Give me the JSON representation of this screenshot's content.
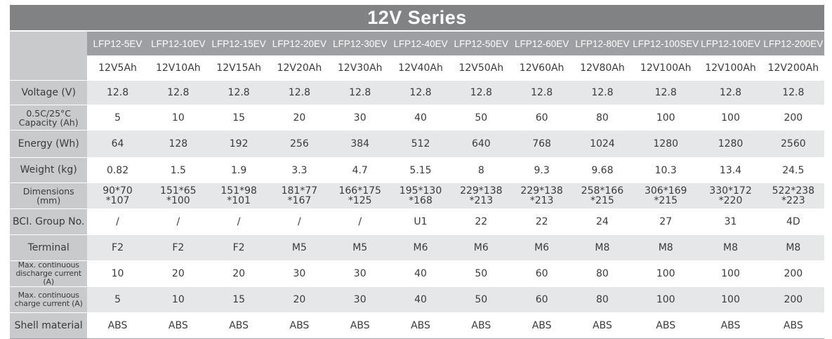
{
  "title": "12V Series",
  "models": [
    "LFP12-5EV",
    "LFP12-10EV",
    "LFP12-15EV",
    "LFP12-20EV",
    "LFP12-30EV",
    "LFP12-40EV",
    "LFP12-50EV",
    "LFP12-60EV",
    "LFP12-80EV",
    "LFP12-100SEV",
    "LFP12-100EV",
    "LFP12-200EV"
  ],
  "capacities": [
    "12V5Ah",
    "12V10Ah",
    "12V15Ah",
    "12V20Ah",
    "12V30Ah",
    "12V40Ah",
    "12V50Ah",
    "12V60Ah",
    "12V80Ah",
    "12V100Ah",
    "12V100Ah",
    "12V200Ah"
  ],
  "rows": [
    {
      "label": "Voltage (V)",
      "values": [
        "12.8",
        "12.8",
        "12.8",
        "12.8",
        "12.8",
        "12.8",
        "12.8",
        "12.8",
        "12.8",
        "12.8",
        "12.8",
        "12.8"
      ]
    },
    {
      "label": "0.5C/25°C\nCapacity (Ah)",
      "values": [
        "5",
        "10",
        "15",
        "20",
        "30",
        "40",
        "50",
        "60",
        "80",
        "100",
        "100",
        "200"
      ]
    },
    {
      "label": "Energy (Wh)",
      "values": [
        "64",
        "128",
        "192",
        "256",
        "384",
        "512",
        "640",
        "768",
        "1024",
        "1280",
        "1280",
        "2560"
      ]
    },
    {
      "label": "Weight (kg)",
      "values": [
        "0.82",
        "1.5",
        "1.9",
        "3.3",
        "4.7",
        "5.15",
        "8",
        "9.3",
        "9.68",
        "10.3",
        "13.4",
        "24.5"
      ]
    },
    {
      "label": "Dimensions (mm)",
      "values": [
        "90*70\n*107",
        "151*65\n*100",
        "151*98\n*101",
        "181*77\n*167",
        "166*175\n*125",
        "195*130\n*168",
        "229*138\n*213",
        "229*138\n*213",
        "258*166\n*215",
        "306*169\n*215",
        "330*172\n*220",
        "522*238\n*223"
      ]
    },
    {
      "label": "BCI. Group No.",
      "values": [
        "/",
        "/",
        "/",
        "/",
        "/",
        "U1",
        "22",
        "22",
        "24",
        "27",
        "31",
        "4D"
      ]
    },
    {
      "label": "Terminal",
      "values": [
        "F2",
        "F2",
        "F2",
        "M5",
        "M5",
        "M6",
        "M6",
        "M6",
        "M8",
        "M8",
        "M8",
        "M8"
      ]
    },
    {
      "label": "Max. continuous\ndischarge current (A)",
      "values": [
        "10",
        "20",
        "20",
        "30",
        "30",
        "40",
        "50",
        "60",
        "80",
        "100",
        "100",
        "200"
      ]
    },
    {
      "label": "Max. continuous\ncharge current (A)",
      "values": [
        "5",
        "10",
        "15",
        "20",
        "30",
        "40",
        "50",
        "60",
        "80",
        "100",
        "100",
        "200"
      ]
    },
    {
      "label": "Shell material",
      "values": [
        "ABS",
        "ABS",
        "ABS",
        "ABS",
        "ABS",
        "ABS",
        "ABS",
        "ABS",
        "ABS",
        "ABS",
        "ABS",
        "ABS"
      ]
    }
  ]
}
